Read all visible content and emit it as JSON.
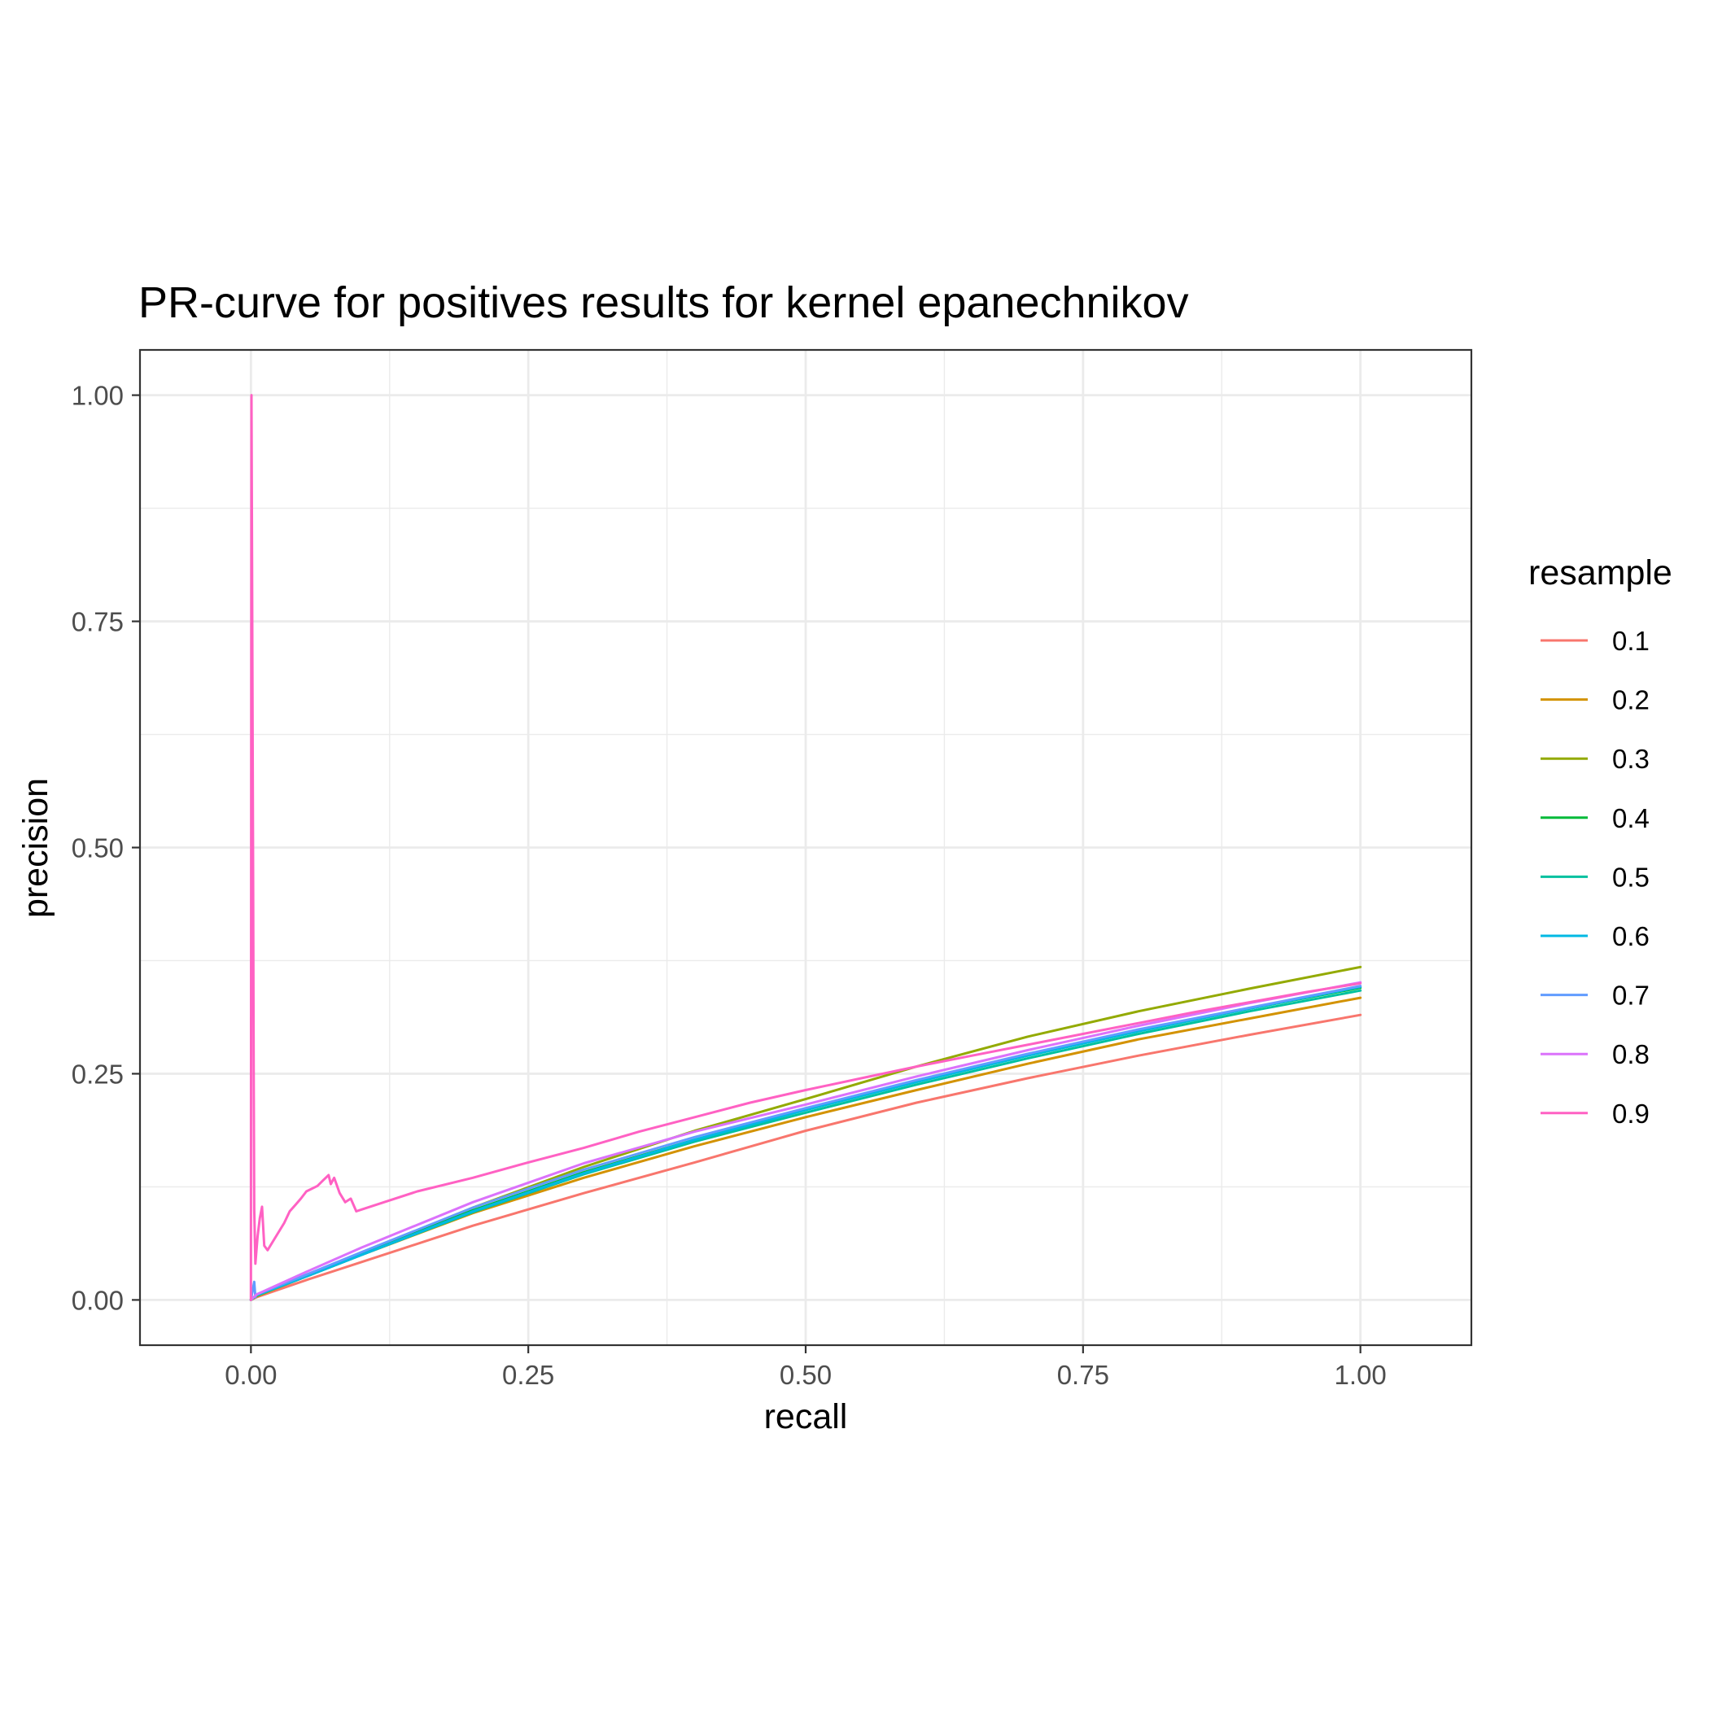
{
  "chart_data": {
    "type": "line",
    "title": "PR-curve for positives results for kernel epanechnikov",
    "xlabel": "recall",
    "ylabel": "precision",
    "xlim": [
      -0.1,
      1.1
    ],
    "ylim": [
      -0.05,
      1.05
    ],
    "x_ticks": [
      0,
      0.25,
      0.5,
      0.75,
      1
    ],
    "x_tick_labels": [
      "0.00",
      "0.25",
      "0.50",
      "0.75",
      "1.00"
    ],
    "y_ticks": [
      0,
      0.25,
      0.5,
      0.75,
      1
    ],
    "y_tick_labels": [
      "0.00",
      "0.25",
      "0.50",
      "0.75",
      "1.00"
    ],
    "grid": true,
    "legend": {
      "title": "resample",
      "position": "right"
    },
    "series": [
      {
        "name": "0.1",
        "color": "#F8766D",
        "x": [
          0,
          0.005,
          0.05,
          0.1,
          0.2,
          0.3,
          0.4,
          0.5,
          0.6,
          0.7,
          0.8,
          0.9,
          1.0
        ],
        "y": [
          0,
          0.003,
          0.022,
          0.042,
          0.082,
          0.118,
          0.152,
          0.187,
          0.218,
          0.245,
          0.27,
          0.293,
          0.315
        ]
      },
      {
        "name": "0.2",
        "color": "#D39200",
        "x": [
          0,
          0.005,
          0.05,
          0.1,
          0.2,
          0.3,
          0.4,
          0.5,
          0.6,
          0.7,
          0.8,
          0.9,
          1.0
        ],
        "y": [
          0,
          0.004,
          0.026,
          0.05,
          0.096,
          0.135,
          0.17,
          0.202,
          0.232,
          0.261,
          0.288,
          0.311,
          0.334
        ]
      },
      {
        "name": "0.3",
        "color": "#93AA00",
        "x": [
          0,
          0.005,
          0.05,
          0.1,
          0.2,
          0.3,
          0.4,
          0.5,
          0.6,
          0.7,
          0.8,
          0.9,
          1.0
        ],
        "y": [
          0,
          0.004,
          0.027,
          0.052,
          0.102,
          0.147,
          0.187,
          0.222,
          0.258,
          0.291,
          0.319,
          0.344,
          0.368
        ]
      },
      {
        "name": "0.4",
        "color": "#00BA38",
        "x": [
          0,
          0.005,
          0.05,
          0.1,
          0.2,
          0.3,
          0.4,
          0.5,
          0.6,
          0.7,
          0.8,
          0.9,
          1.0
        ],
        "y": [
          0,
          0.005,
          0.027,
          0.051,
          0.099,
          0.141,
          0.177,
          0.21,
          0.241,
          0.27,
          0.297,
          0.322,
          0.345
        ]
      },
      {
        "name": "0.5",
        "color": "#00C19F",
        "x": [
          0,
          0.005,
          0.05,
          0.1,
          0.2,
          0.3,
          0.4,
          0.5,
          0.6,
          0.7,
          0.8,
          0.9,
          1.0
        ],
        "y": [
          0,
          0.005,
          0.026,
          0.05,
          0.097,
          0.139,
          0.175,
          0.207,
          0.238,
          0.267,
          0.294,
          0.319,
          0.342
        ]
      },
      {
        "name": "0.6",
        "color": "#00B9E3",
        "x": [
          0,
          0.005,
          0.05,
          0.1,
          0.2,
          0.3,
          0.4,
          0.5,
          0.6,
          0.7,
          0.8,
          0.9,
          1.0
        ],
        "y": [
          0,
          0.005,
          0.026,
          0.05,
          0.098,
          0.14,
          0.177,
          0.21,
          0.241,
          0.27,
          0.297,
          0.322,
          0.346
        ]
      },
      {
        "name": "0.7",
        "color": "#619CFF",
        "x": [
          0,
          0.003,
          0.004,
          0.005,
          0.05,
          0.1,
          0.2,
          0.3,
          0.4,
          0.5,
          0.6,
          0.7,
          0.8,
          0.9,
          1.0
        ],
        "y": [
          0,
          0.02,
          0.003,
          0.006,
          0.028,
          0.053,
          0.102,
          0.144,
          0.18,
          0.212,
          0.243,
          0.272,
          0.299,
          0.323,
          0.347
        ]
      },
      {
        "name": "0.8",
        "color": "#DB72FB",
        "x": [
          0,
          0.005,
          0.05,
          0.1,
          0.2,
          0.3,
          0.4,
          0.5,
          0.6,
          0.7,
          0.8,
          0.9,
          1.0
        ],
        "y": [
          0,
          0.006,
          0.031,
          0.058,
          0.108,
          0.151,
          0.186,
          0.216,
          0.247,
          0.276,
          0.303,
          0.328,
          0.351
        ]
      },
      {
        "name": "0.9",
        "color": "#FF61C3",
        "x": [
          0,
          0.0005,
          0.001,
          0.0015,
          0.002,
          0.0025,
          0.003,
          0.004,
          0.006,
          0.008,
          0.01,
          0.012,
          0.015,
          0.02,
          0.025,
          0.03,
          0.035,
          0.04,
          0.045,
          0.05,
          0.06,
          0.065,
          0.07,
          0.072,
          0.075,
          0.08,
          0.085,
          0.09,
          0.095,
          0.1,
          0.12,
          0.15,
          0.2,
          0.25,
          0.3,
          0.35,
          0.4,
          0.45,
          0.5,
          0.55,
          0.6,
          0.65,
          0.7,
          0.75,
          0.8,
          0.85,
          0.9,
          0.95,
          1.0
        ],
        "y": [
          0,
          1.0,
          0.82,
          0.63,
          0.45,
          0.26,
          0.1,
          0.04,
          0.07,
          0.09,
          0.103,
          0.06,
          0.055,
          0.065,
          0.075,
          0.085,
          0.098,
          0.105,
          0.112,
          0.12,
          0.126,
          0.132,
          0.138,
          0.128,
          0.135,
          0.118,
          0.108,
          0.112,
          0.098,
          0.1,
          0.108,
          0.12,
          0.135,
          0.152,
          0.168,
          0.186,
          0.202,
          0.218,
          0.232,
          0.245,
          0.258,
          0.27,
          0.282,
          0.294,
          0.306,
          0.318,
          0.329,
          0.34,
          0.35
        ]
      }
    ]
  }
}
